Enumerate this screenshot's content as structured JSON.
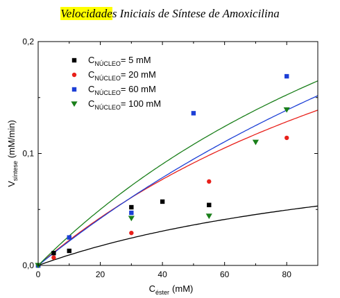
{
  "title": {
    "highlighted": "Velocidade",
    "rest": "s Iniciais de Síntese de Amoxicilina"
  },
  "chart_data": {
    "type": "scatter",
    "title": "Velocidades Iniciais de Síntese de Amoxicilina",
    "xlabel": {
      "main": "C",
      "sub": "éster",
      "unit": "(mM)"
    },
    "ylabel": {
      "main": "V",
      "sub": "síntese",
      "unit": "(mM/min)"
    },
    "xlim": [
      0,
      90
    ],
    "ylim": [
      0,
      0.2
    ],
    "x_ticks": [
      0,
      20,
      40,
      60,
      80
    ],
    "x_tick_labels": [
      "0",
      "20",
      "40",
      "60",
      "80"
    ],
    "y_ticks": [
      0,
      0.1,
      0.2
    ],
    "y_tick_labels": [
      "0,0",
      "0,1",
      "0,2"
    ],
    "grid": false,
    "legend_position": "top-left",
    "series": [
      {
        "name": "5 mM",
        "label_parts": {
          "main": "C",
          "sub": "NÚCLEO",
          "value": "= 5 mM"
        },
        "marker": "square",
        "color": "#000000",
        "points": [
          [
            0,
            0.0
          ],
          [
            5,
            0.011
          ],
          [
            10,
            0.013
          ],
          [
            30,
            0.052
          ],
          [
            40,
            0.057
          ],
          [
            55,
            0.054
          ]
        ],
        "fit": {
          "vmax": 0.128,
          "km": 127
        }
      },
      {
        "name": "20 mM",
        "label_parts": {
          "main": "C",
          "sub": "NÚCLEO",
          "value": "= 20 mM"
        },
        "marker": "circle",
        "color": "#e8201a",
        "points": [
          [
            0,
            0.0
          ],
          [
            5,
            0.007
          ],
          [
            30,
            0.029
          ],
          [
            55,
            0.075
          ],
          [
            80,
            0.114
          ]
        ],
        "fit": {
          "vmax": 0.39,
          "km": 163
        }
      },
      {
        "name": "60 mM",
        "label_parts": {
          "main": "C",
          "sub": "NÚCLEO",
          "value": "= 60 mM"
        },
        "marker": "square",
        "color": "#1c3fd6",
        "points": [
          [
            0,
            0.0
          ],
          [
            10,
            0.025
          ],
          [
            30,
            0.047
          ],
          [
            50,
            0.136
          ],
          [
            80,
            0.169
          ]
        ],
        "fit": {
          "vmax": 0.6,
          "km": 266
        }
      },
      {
        "name": "100 mM",
        "label_parts": {
          "main": "C",
          "sub": "NÚCLEO",
          "value": "= 100 mM"
        },
        "marker": "triangle-down",
        "color": "#1a7f1a",
        "points": [
          [
            0,
            0.0
          ],
          [
            30,
            0.042
          ],
          [
            55,
            0.044
          ],
          [
            70,
            0.11
          ],
          [
            80,
            0.139
          ]
        ],
        "fit": {
          "vmax": 0.48,
          "km": 172
        }
      }
    ]
  }
}
